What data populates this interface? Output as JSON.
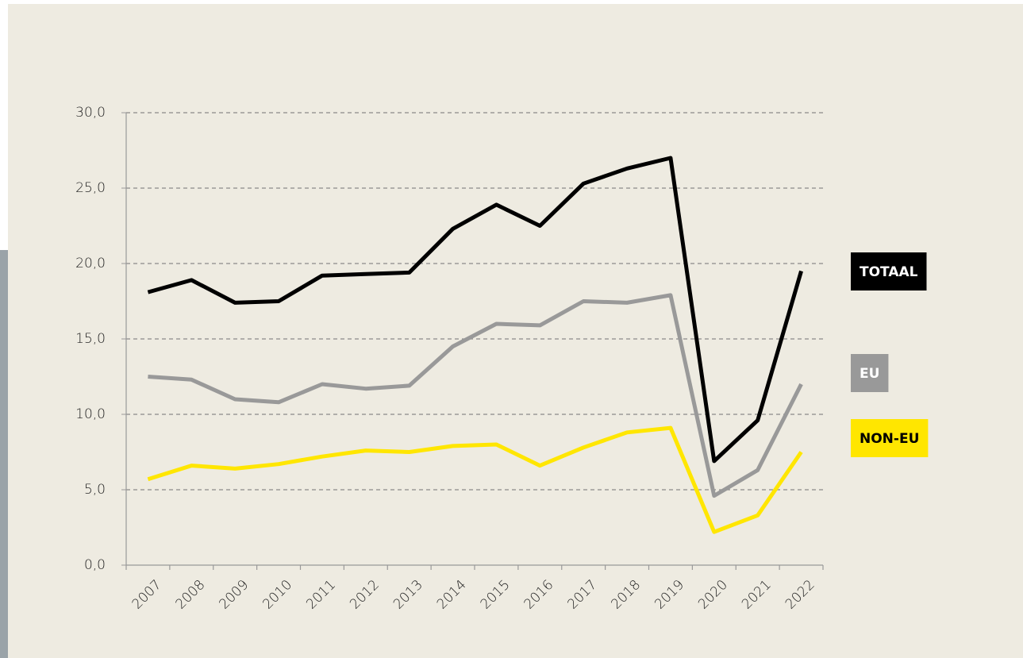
{
  "chart_data": {
    "type": "line",
    "categories": [
      "2007",
      "2008",
      "2009",
      "2010",
      "2011",
      "2012",
      "2013",
      "2014",
      "2015",
      "2016",
      "2017",
      "2018",
      "2019",
      "2020",
      "2021",
      "2022"
    ],
    "series": [
      {
        "name": "TOTAAL",
        "color": "#000000",
        "values": [
          18.1,
          18.9,
          17.4,
          17.5,
          19.2,
          19.3,
          19.4,
          22.3,
          23.9,
          22.5,
          25.3,
          26.3,
          27.0,
          6.9,
          9.6,
          19.5
        ]
      },
      {
        "name": "EU",
        "color": "#999999",
        "values": [
          12.5,
          12.3,
          11.0,
          10.8,
          12.0,
          11.7,
          11.9,
          14.5,
          16.0,
          15.9,
          17.5,
          17.4,
          17.9,
          4.6,
          6.3,
          12.0
        ]
      },
      {
        "name": "NON-EU",
        "color": "#ffe600",
        "values": [
          5.7,
          6.6,
          6.4,
          6.7,
          7.2,
          7.6,
          7.5,
          7.9,
          8.0,
          6.6,
          7.8,
          8.8,
          9.1,
          2.2,
          3.3,
          7.5
        ]
      }
    ],
    "ylim": [
      0,
      30
    ],
    "yticks": [
      {
        "value": 0,
        "label": "0,0"
      },
      {
        "value": 5,
        "label": "5,0"
      },
      {
        "value": 10,
        "label": "10,0"
      },
      {
        "value": 15,
        "label": "15,0"
      },
      {
        "value": 20,
        "label": "20,0"
      },
      {
        "value": 25,
        "label": "25,0"
      },
      {
        "value": 30,
        "label": "30,0"
      }
    ],
    "grid": true
  }
}
